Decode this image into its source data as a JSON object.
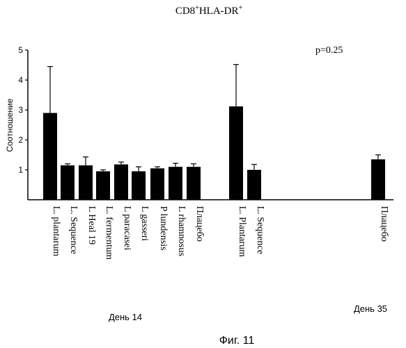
{
  "chart_data": {
    "type": "bar",
    "title_main": "CD8",
    "title_sup1": "+",
    "title_rest": "HLA-DR",
    "title_sup2": "+",
    "ylabel": "Соотношение",
    "ylim": [
      0,
      5
    ],
    "yticks": [
      1,
      2,
      3,
      4,
      5
    ],
    "annotation": "p=0.25",
    "groups": [
      {
        "label": "День 14",
        "bars": [
          {
            "category": "L. plantarum",
            "value": 2.9,
            "error": 1.55
          },
          {
            "category": "L. Sequence",
            "value": 1.15,
            "error": 0.05
          },
          {
            "category": "L Heal 19",
            "value": 1.15,
            "error": 0.28
          },
          {
            "category": "L. fermentum",
            "value": 0.95,
            "error": 0.05
          },
          {
            "category": "L paracasei",
            "value": 1.18,
            "error": 0.08
          },
          {
            "category": "L gasseri",
            "value": 0.95,
            "error": 0.15
          },
          {
            "category": "P lundensis",
            "value": 1.05,
            "error": 0.05
          },
          {
            "category": "L rhamnosus",
            "value": 1.1,
            "error": 0.12
          },
          {
            "category": "Плацебо",
            "value": 1.1,
            "error": 0.1
          }
        ]
      },
      {
        "label": "День 35",
        "bars": [
          {
            "category": "L. Plantarum",
            "value": 3.12,
            "error": 1.4
          },
          {
            "category": "L. Sequence",
            "value": 1.0,
            "error": 0.18
          },
          {
            "category": "Плацебо",
            "value": 1.35,
            "error": 0.15
          }
        ]
      }
    ],
    "bar_color": "#000000",
    "grid": false
  },
  "caption": "Фиг. 11"
}
